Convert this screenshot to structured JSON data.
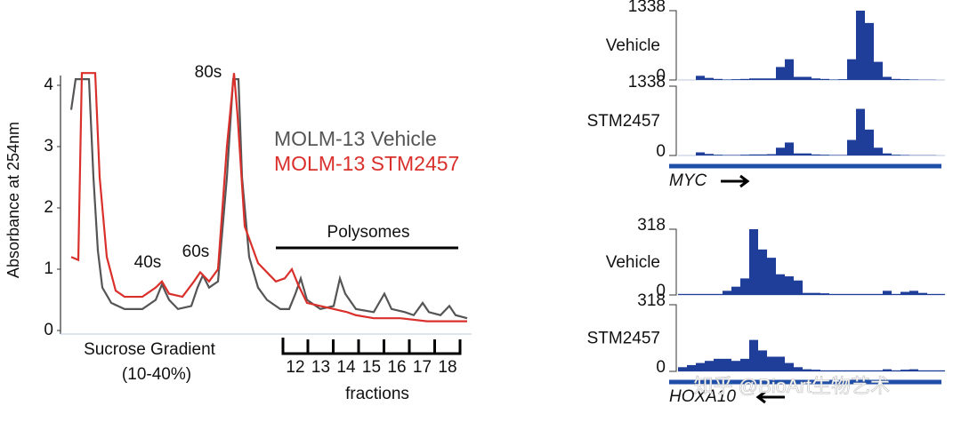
{
  "chart_data": [
    {
      "type": "line",
      "ylabel": "Absorbance at 254nm",
      "ylim": [
        0,
        4.2
      ],
      "yticks": [
        0,
        1,
        2,
        3,
        4
      ],
      "xlim": [
        0,
        445
      ],
      "series": [
        {
          "name": "MOLM-13 Vehicle",
          "color": "#555555",
          "x": [
            0,
            5,
            10,
            20,
            25,
            30,
            35,
            45,
            60,
            80,
            95,
            102,
            110,
            120,
            135,
            142,
            148,
            155,
            165,
            175,
            182,
            188,
            192,
            200,
            210,
            220,
            235,
            245,
            252,
            258,
            265,
            280,
            295,
            302,
            308,
            320,
            340,
            352,
            360,
            375,
            385,
            395,
            402,
            415,
            425,
            432,
            445
          ],
          "values": [
            3.6,
            4.1,
            4.1,
            4.1,
            2.5,
            1.3,
            0.7,
            0.45,
            0.35,
            0.35,
            0.5,
            0.75,
            0.5,
            0.35,
            0.4,
            0.7,
            0.9,
            0.7,
            0.8,
            2.5,
            4.1,
            4.1,
            2.5,
            1.2,
            0.7,
            0.5,
            0.35,
            0.35,
            0.6,
            0.85,
            0.5,
            0.35,
            0.4,
            0.85,
            0.6,
            0.35,
            0.3,
            0.6,
            0.35,
            0.3,
            0.25,
            0.45,
            0.3,
            0.25,
            0.4,
            0.25,
            0.2
          ]
        },
        {
          "name": "MOLM-13 STM2457",
          "color": "#d9302c",
          "x": [
            0,
            8,
            12,
            27,
            32,
            40,
            50,
            60,
            80,
            95,
            102,
            110,
            125,
            138,
            145,
            155,
            165,
            175,
            183,
            187,
            195,
            210,
            230,
            240,
            248,
            255,
            265,
            280,
            295,
            310,
            320,
            340,
            370,
            400,
            445
          ],
          "values": [
            1.2,
            1.15,
            4.2,
            4.2,
            2.5,
            1.2,
            0.65,
            0.55,
            0.55,
            0.7,
            0.8,
            0.6,
            0.55,
            0.8,
            0.95,
            0.8,
            1.0,
            3.0,
            4.2,
            3.5,
            1.7,
            1.1,
            0.8,
            0.85,
            1.0,
            0.75,
            0.45,
            0.4,
            0.35,
            0.3,
            0.25,
            0.2,
            0.2,
            0.15,
            0.15
          ]
        }
      ],
      "annotations": [
        "40s",
        "60s",
        "80s",
        "Polysomes",
        "Sucrose Gradient",
        "(10-40%)",
        "fractions"
      ],
      "fractions": [
        12,
        13,
        14,
        15,
        16,
        17,
        18
      ]
    },
    {
      "type": "bar",
      "title": "Vehicle",
      "color": "#1f3e99",
      "ylim": [
        0,
        1338
      ],
      "yticks": [
        0,
        1338
      ],
      "values": [
        0,
        0,
        80,
        40,
        20,
        10,
        15,
        20,
        30,
        30,
        30,
        250,
        400,
        60,
        60,
        30,
        20,
        10,
        15,
        400,
        1338,
        1100,
        350,
        60,
        20,
        15,
        10,
        5,
        5,
        0
      ]
    },
    {
      "type": "bar",
      "title": "STM2457",
      "color": "#1f3e99",
      "ylim": [
        0,
        1338
      ],
      "yticks": [
        0,
        1338
      ],
      "gene": "MYC",
      "values": [
        0,
        0,
        60,
        30,
        15,
        10,
        10,
        15,
        20,
        20,
        25,
        150,
        250,
        40,
        40,
        20,
        15,
        10,
        10,
        300,
        900,
        500,
        150,
        40,
        15,
        10,
        5,
        5,
        5,
        0
      ]
    },
    {
      "type": "bar",
      "title": "Vehicle",
      "color": "#1f3e99",
      "ylim": [
        0,
        318
      ],
      "yticks": [
        0,
        318
      ],
      "values": [
        5,
        5,
        5,
        5,
        5,
        20,
        40,
        80,
        318,
        220,
        180,
        100,
        90,
        70,
        10,
        10,
        8,
        5,
        5,
        5,
        5,
        5,
        5,
        20,
        5,
        15,
        20,
        10,
        5,
        5
      ]
    },
    {
      "type": "bar",
      "title": "STM2457",
      "color": "#1f3e99",
      "ylim": [
        0,
        318
      ],
      "yticks": [
        0,
        318
      ],
      "gene": "HOXA10",
      "values": [
        20,
        30,
        40,
        50,
        60,
        60,
        50,
        60,
        150,
        100,
        70,
        70,
        40,
        20,
        10,
        8,
        5,
        5,
        5,
        5,
        5,
        5,
        5,
        10,
        5,
        8,
        10,
        5,
        5,
        5
      ]
    }
  ],
  "watermark": "知乎 @BioArt生物艺术"
}
